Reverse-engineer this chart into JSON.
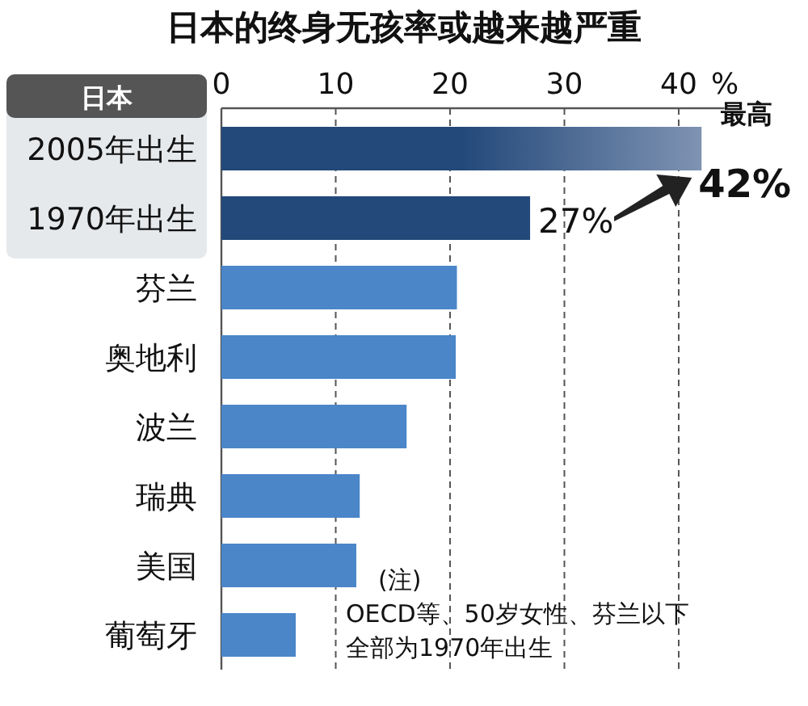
{
  "chart_data": {
    "type": "bar",
    "orientation": "horizontal",
    "title": "日本的终身无孩率或越来越严重",
    "xlabel": "%",
    "categories": [
      "2005年出生",
      "1970年出生",
      "芬兰",
      "奥地利",
      "波兰",
      "瑞典",
      "美国",
      "葡萄牙"
    ],
    "values": [
      42,
      27,
      20.6,
      20.5,
      16.2,
      12.1,
      11.8,
      6.5
    ],
    "colors": [
      "#23497a",
      "#23497a",
      "#4a86c8",
      "#4a86c8",
      "#4a86c8",
      "#4a86c8",
      "#4a86c8",
      "#4a86c8"
    ],
    "value_labels": [
      "42%",
      "27%",
      null,
      null,
      null,
      null,
      null,
      null
    ],
    "xlim": [
      0,
      44
    ],
    "xticks": [
      0,
      10,
      20,
      30,
      40
    ],
    "grid": "x",
    "annotations": [
      {
        "text": "最高",
        "x": 42,
        "y": "2005年出生"
      },
      "日本",
      "(注)",
      "OECD等、50岁女性、芬兰以下",
      "全部为1970年出生"
    ]
  }
}
